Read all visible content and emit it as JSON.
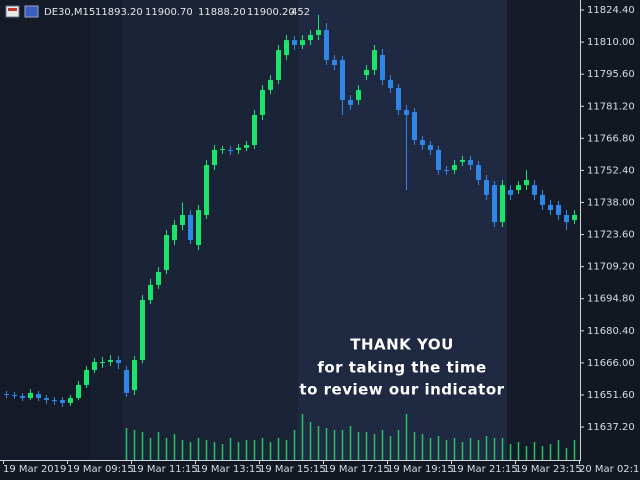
{
  "header": {
    "symbol": "DE30,M15",
    "quote": [
      "11893.20",
      "11900.70",
      "11888.20",
      "11900.20"
    ],
    "volume": "452"
  },
  "chart_data": {
    "type": "candlestick",
    "annotation": [
      "THANK YOU",
      "for taking the time",
      "to review our indicator"
    ],
    "categories": [
      "19 Mar 2019",
      null,
      null,
      null,
      null,
      null,
      null,
      null,
      "19 Mar 09:15",
      null,
      null,
      null,
      null,
      null,
      null,
      null,
      "19 Mar 11:15",
      null,
      null,
      null,
      null,
      null,
      null,
      null,
      "19 Mar 13:15",
      null,
      null,
      null,
      null,
      null,
      null,
      null,
      "19 Mar 15:15",
      null,
      null,
      null,
      null,
      null,
      null,
      null,
      "19 Mar 17:15",
      null,
      null,
      null,
      null,
      null,
      null,
      null,
      "19 Mar 19:15",
      null,
      null,
      null,
      null,
      null,
      null,
      null,
      "19 Mar 21:15",
      null,
      null,
      null,
      null,
      null,
      null,
      null,
      "19 Mar 23:15",
      null,
      null,
      null,
      null,
      null,
      null,
      null,
      "20 Mar 02:15"
    ],
    "open": [
      11652.0,
      11651.6,
      11651.1,
      11650.2,
      11652.0,
      11650.2,
      11649.3,
      11649.3,
      11648.0,
      11650.2,
      11656.1,
      11662.8,
      11665.9,
      11666.4,
      11667.3,
      11662.8,
      11653.8,
      11667.3,
      11694.2,
      11701.0,
      11707.7,
      11721.1,
      11727.9,
      11732.4,
      11718.9,
      11732.4,
      11754.8,
      11761.6,
      11761.6,
      11761.6,
      11762.5,
      11763.8,
      11777.3,
      11788.5,
      11793.0,
      11804.2,
      11810.9,
      11808.7,
      11810.9,
      11813.2,
      11815.4,
      11802.0,
      11802.0,
      11784.0,
      11784.0,
      11795.2,
      11797.5,
      11804.2,
      11793.0,
      11789.4,
      11779.5,
      11778.6,
      11766.0,
      11763.8,
      11761.6,
      11752.6,
      11752.6,
      11756.2,
      11757.1,
      11754.8,
      11748.1,
      11745.8,
      11729.2,
      11743.6,
      11743.6,
      11745.8,
      11745.8,
      11741.4,
      11736.9,
      11736.9,
      11732.4,
      11730.1,
      null
    ],
    "high": [
      11653.4,
      11652.9,
      11652.5,
      11654.3,
      11653.4,
      11651.6,
      11650.7,
      11650.7,
      11651.6,
      11657.9,
      11664.6,
      11668.2,
      11668.7,
      11669.5,
      11669.1,
      11664.6,
      11669.1,
      11696.4,
      11703.7,
      11709.0,
      11725.6,
      11730.1,
      11738.0,
      11734.6,
      11736.9,
      11757.1,
      11763.8,
      11763.4,
      11763.4,
      11764.3,
      11765.6,
      11779.5,
      11790.7,
      11795.2,
      11808.7,
      11813.2,
      11812.7,
      11813.2,
      11815.4,
      11822.2,
      11818.5,
      11804.2,
      11803.8,
      11786.2,
      11790.7,
      11799.7,
      11808.7,
      11806.9,
      11795.2,
      11791.2,
      11781.8,
      11780.4,
      11767.8,
      11765.6,
      11763.4,
      11754.4,
      11757.1,
      11758.9,
      11758.9,
      11756.6,
      11750.4,
      11747.6,
      11748.1,
      11745.8,
      11747.6,
      11752.6,
      11748.1,
      11743.6,
      11739.1,
      11738.7,
      11734.6,
      11734.6,
      null
    ],
    "low": [
      11650.2,
      11649.8,
      11648.9,
      11649.3,
      11648.9,
      11647.6,
      11647.1,
      11646.2,
      11646.7,
      11649.3,
      11654.7,
      11661.4,
      11663.7,
      11664.6,
      11663.2,
      11650.7,
      11651.6,
      11665.9,
      11692.4,
      11699.2,
      11705.9,
      11718.9,
      11725.6,
      11719.3,
      11716.6,
      11730.6,
      11752.6,
      11759.8,
      11759.3,
      11759.8,
      11761.1,
      11762.0,
      11775.0,
      11786.7,
      11791.2,
      11802.0,
      11806.4,
      11806.9,
      11808.7,
      11810.9,
      11799.7,
      11797.5,
      11777.3,
      11779.5,
      11781.8,
      11793.0,
      11795.2,
      11790.7,
      11787.2,
      11777.3,
      11743.6,
      11763.8,
      11761.6,
      11759.3,
      11750.4,
      11750.4,
      11750.8,
      11754.4,
      11752.6,
      11745.8,
      11739.1,
      11727.0,
      11727.0,
      11739.1,
      11741.8,
      11743.6,
      11739.1,
      11734.6,
      11732.4,
      11730.1,
      11725.6,
      11728.3,
      null
    ],
    "close": [
      11651.6,
      11651.1,
      11650.2,
      11652.5,
      11650.2,
      11649.3,
      11648.8,
      11648.0,
      11650.2,
      11656.1,
      11662.8,
      11666.4,
      11666.4,
      11667.3,
      11665.9,
      11652.5,
      11667.3,
      11694.2,
      11701.0,
      11706.8,
      11723.4,
      11727.9,
      11732.4,
      11721.1,
      11734.6,
      11754.8,
      11761.6,
      11762.0,
      11761.1,
      11762.5,
      11763.8,
      11777.3,
      11788.5,
      11793.0,
      11806.4,
      11810.9,
      11808.7,
      11810.9,
      11813.2,
      11815.4,
      11802.0,
      11799.7,
      11784.0,
      11781.8,
      11788.5,
      11797.5,
      11806.4,
      11793.0,
      11789.4,
      11779.5,
      11777.3,
      11766.0,
      11763.8,
      11761.6,
      11752.6,
      11752.2,
      11754.8,
      11757.1,
      11754.8,
      11748.1,
      11741.4,
      11729.2,
      11745.8,
      11741.4,
      11745.8,
      11748.1,
      11741.4,
      11736.9,
      11734.6,
      11732.4,
      11729.2,
      11732.4,
      null
    ],
    "volume": [
      null,
      null,
      null,
      null,
      null,
      null,
      null,
      null,
      null,
      null,
      null,
      null,
      null,
      null,
      null,
      723,
      678,
      633,
      497,
      633,
      497,
      588,
      452,
      407,
      497,
      452,
      407,
      362,
      497,
      407,
      452,
      452,
      497,
      407,
      497,
      452,
      678,
      1040,
      859,
      768,
      723,
      678,
      678,
      768,
      633,
      633,
      588,
      678,
      542,
      678,
      1040,
      633,
      588,
      497,
      542,
      452,
      497,
      407,
      497,
      452,
      542,
      497,
      497,
      362,
      407,
      316,
      407,
      316,
      362,
      452,
      271,
      452,
      null
    ],
    "up_color": "#1ee36a",
    "down_color": "#2f86e6",
    "volume_color": "#22c55e",
    "ylim": [
      11622.4,
      11828.9
    ],
    "yticks": [
      {
        "value": 11824.4,
        "label": "11824.40"
      },
      {
        "value": 11810,
        "label": "11810.00"
      },
      {
        "value": 11795.6,
        "label": "11795.60"
      },
      {
        "value": 11781.2,
        "label": "11781.20"
      },
      {
        "value": 11766.8,
        "label": "11766.80"
      },
      {
        "value": 11752.4,
        "label": "11752.40"
      },
      {
        "value": 11738,
        "label": "11738.00"
      },
      {
        "value": 11723.6,
        "label": "11723.60"
      },
      {
        "value": 11709.2,
        "label": "11709.20"
      },
      {
        "value": 11694.8,
        "label": "11694.80"
      },
      {
        "value": 11680.4,
        "label": "11680.40"
      },
      {
        "value": 11666,
        "label": "11666.00"
      },
      {
        "value": 11651.6,
        "label": "11651.60"
      },
      {
        "value": 11637.2,
        "label": "11637.20"
      }
    ]
  }
}
